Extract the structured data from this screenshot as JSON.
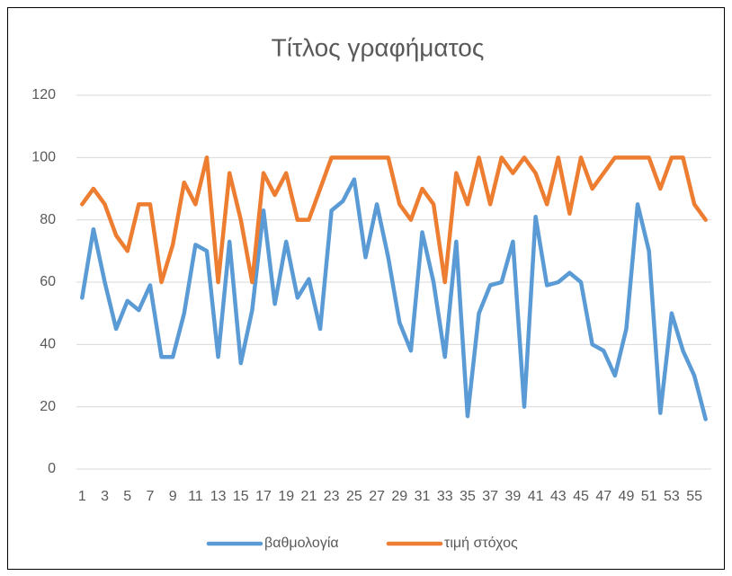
{
  "chart_data": {
    "type": "line",
    "title": "Τίτλος γραφήματος",
    "categories": [
      "1",
      null,
      "3",
      null,
      "5",
      null,
      "7",
      null,
      "9",
      null,
      "11",
      null,
      "13",
      null,
      "15",
      null,
      "17",
      null,
      "19",
      null,
      "21",
      null,
      "23",
      null,
      "25",
      null,
      "27",
      null,
      "29",
      null,
      "31",
      null,
      "33",
      null,
      "35",
      null,
      "37",
      null,
      "39",
      null,
      "41",
      null,
      "43",
      null,
      "45",
      null,
      "47",
      null,
      "49",
      null,
      "51",
      null,
      "53",
      null,
      "55",
      null
    ],
    "series": [
      {
        "name": "βαθμολογία",
        "color": "#5b9bd5",
        "values": [
          55,
          77,
          60,
          45,
          54,
          51,
          59,
          36,
          36,
          50,
          72,
          70,
          36,
          73,
          34,
          51,
          83,
          53,
          73,
          55,
          61,
          45,
          83,
          86,
          93,
          68,
          85,
          68,
          47,
          38,
          76,
          60,
          36,
          73,
          17,
          50,
          59,
          60,
          73,
          20,
          81,
          59,
          60,
          63,
          60,
          40,
          38,
          30,
          45,
          85,
          70,
          18,
          50,
          38,
          30,
          16
        ]
      },
      {
        "name": "τιμή στόχος",
        "color": "#ed7d31",
        "values": [
          85,
          90,
          85,
          75,
          70,
          85,
          85,
          60,
          72,
          92,
          85,
          100,
          60,
          95,
          80,
          60,
          95,
          88,
          95,
          80,
          80,
          90,
          100,
          100,
          100,
          100,
          100,
          100,
          85,
          80,
          90,
          85,
          60,
          95,
          85,
          100,
          85,
          100,
          95,
          100,
          95,
          85,
          100,
          82,
          100,
          90,
          95,
          100,
          100,
          100,
          100,
          90,
          100,
          100,
          85,
          80
        ]
      }
    ],
    "ylim": [
      0,
      120
    ],
    "yticks": [
      0,
      20,
      40,
      60,
      80,
      100,
      120
    ],
    "grid": true,
    "legend": "bottom"
  }
}
